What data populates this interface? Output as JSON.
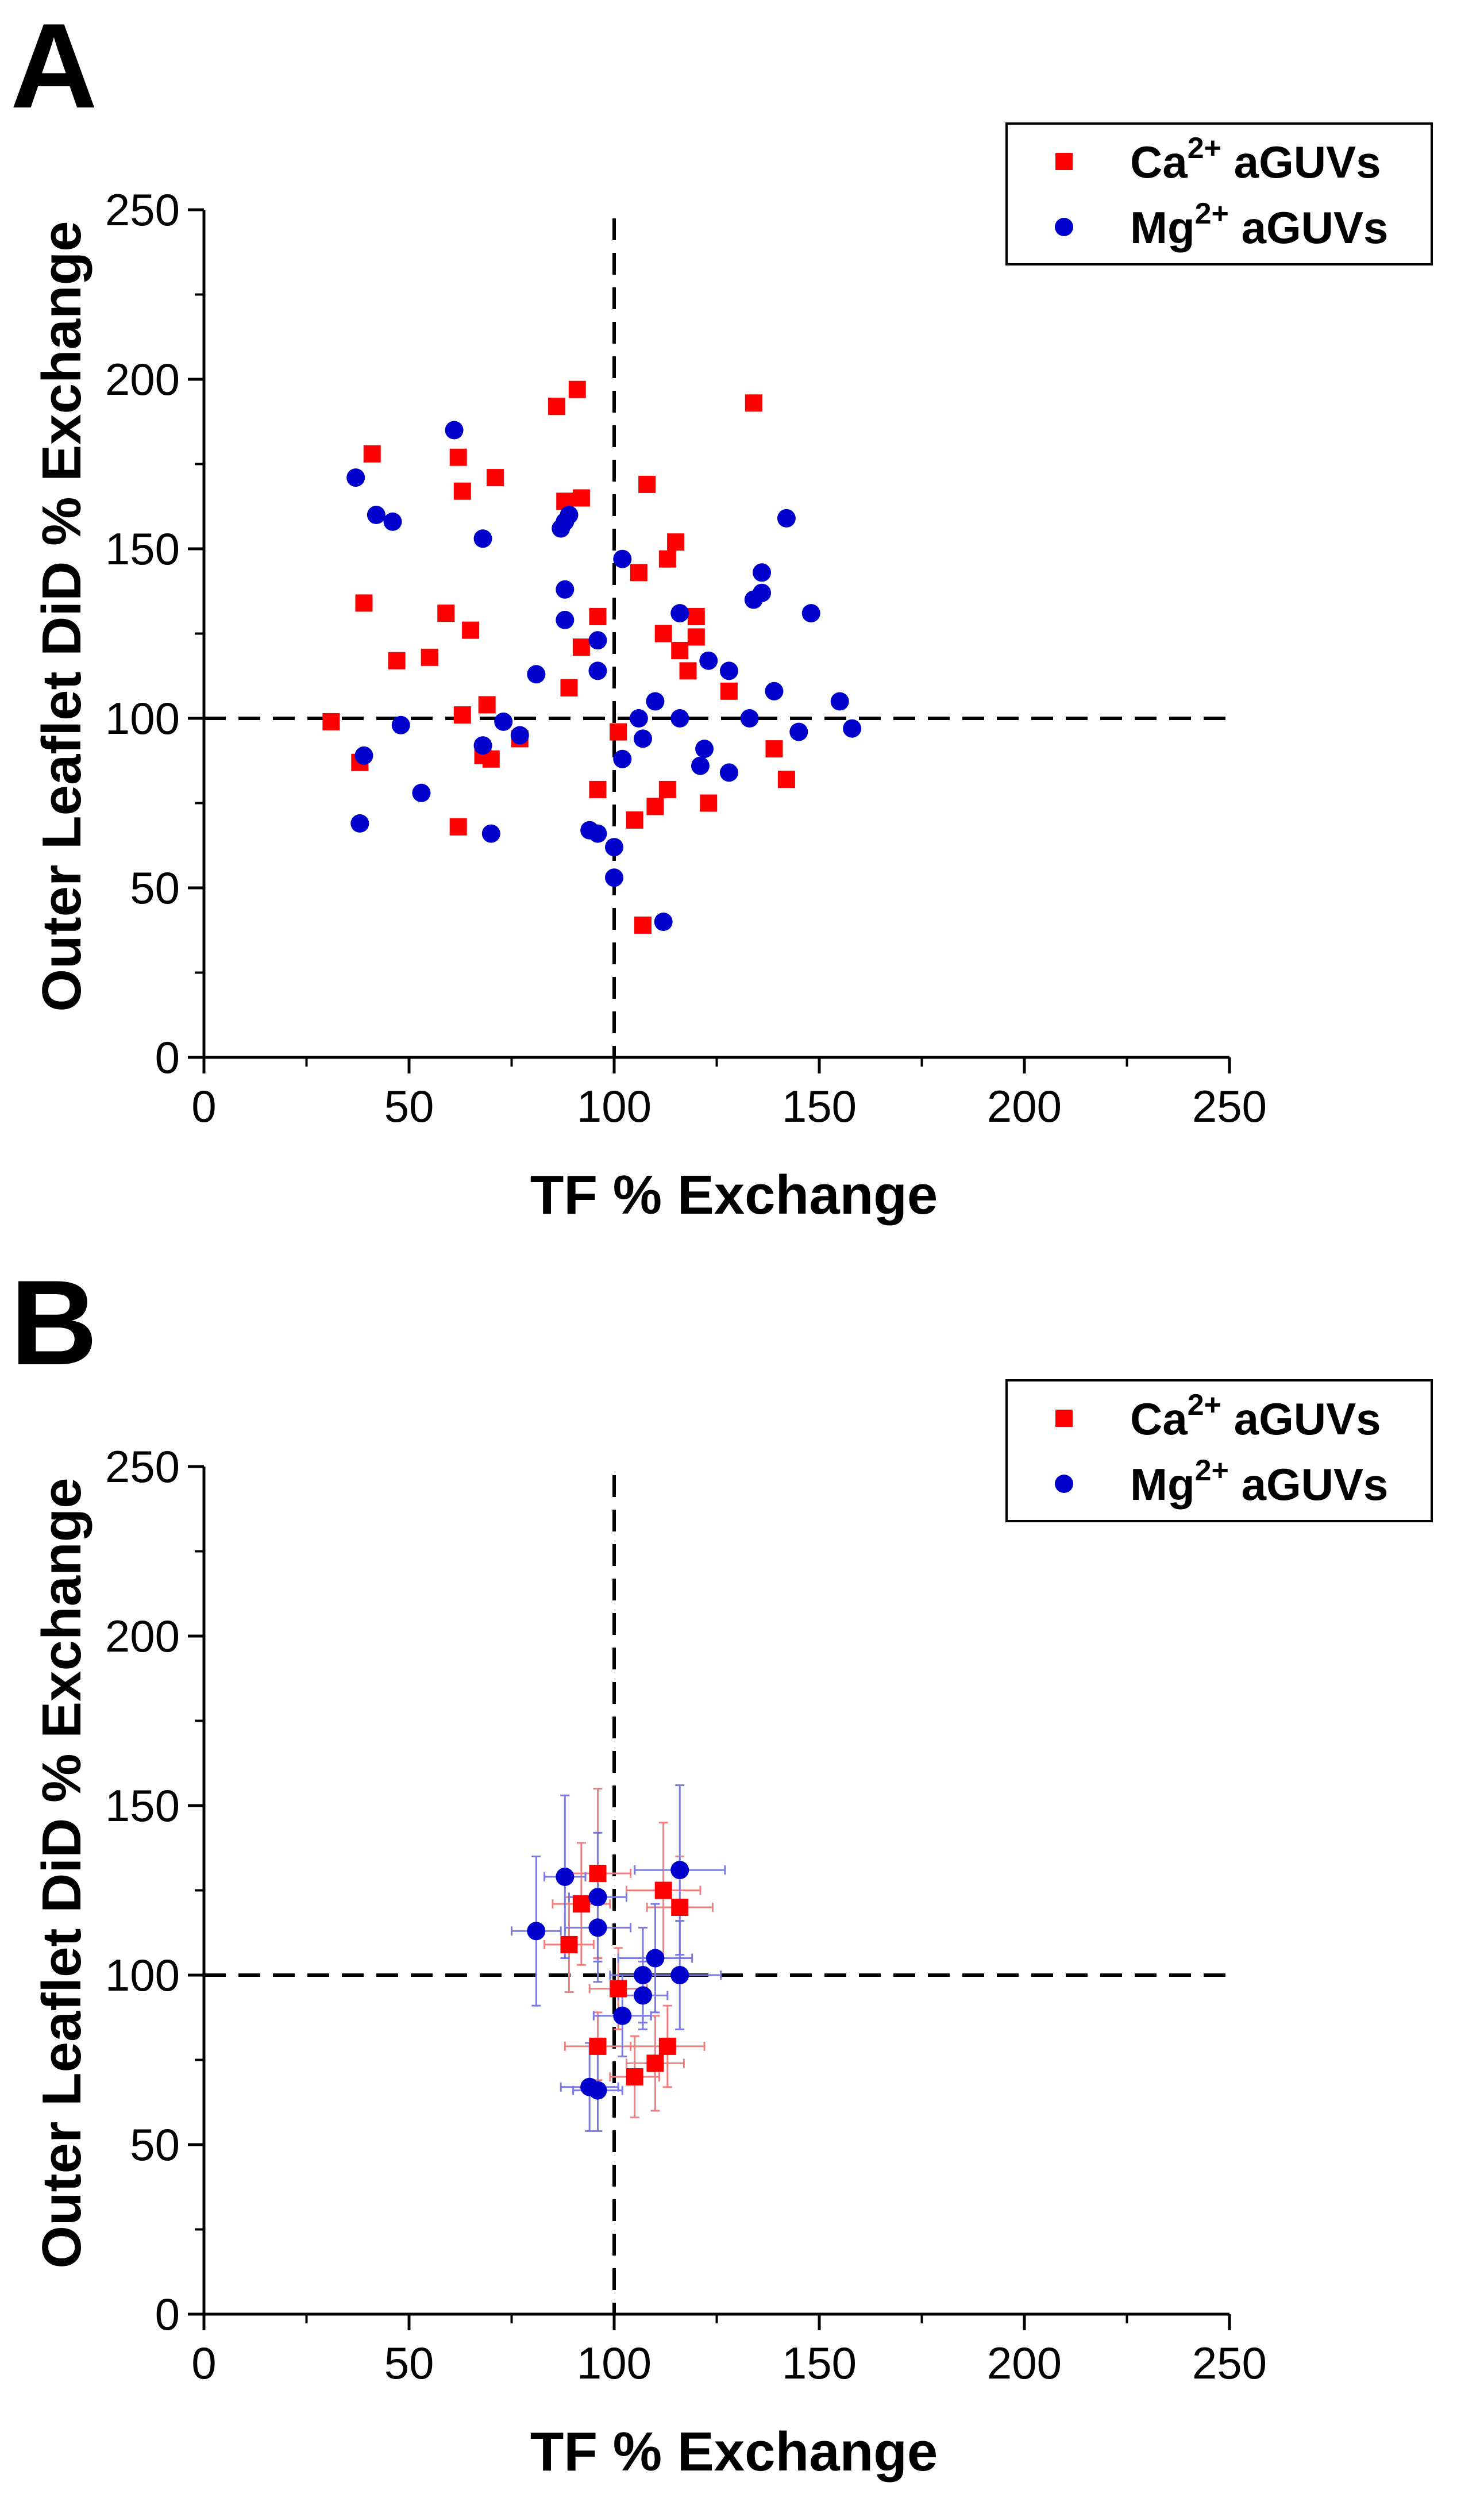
{
  "chart_data": [
    {
      "panel_label": "A",
      "type": "scatter",
      "xlabel": "TF % Exchange",
      "ylabel": "Outer Leaflet DiD % Exchange",
      "xlim": [
        0,
        250
      ],
      "ylim": [
        0,
        250
      ],
      "xticks": [
        "0",
        "50",
        "100",
        "150",
        "200",
        "250"
      ],
      "yticks": [
        "0",
        "50",
        "100",
        "150",
        "200",
        "250"
      ],
      "reference_lines": {
        "x": 100,
        "y": 100,
        "style": "dashed"
      },
      "legend": {
        "placement": "top-right",
        "entries": [
          {
            "prefix": "Ca",
            "sup": "2+",
            "suffix": " aGUVs",
            "marker": "square",
            "color": "#ff0000"
          },
          {
            "prefix": "Mg",
            "sup": "2+",
            "suffix": " aGUVs",
            "marker": "circle",
            "color": "#0000cc"
          }
        ]
      },
      "series": [
        {
          "name": "Ca2+ aGUVs",
          "marker": "square",
          "color": "#ff0000",
          "points": [
            [
              31,
              99
            ],
            [
              38,
              87
            ],
            [
              39,
              134
            ],
            [
              41,
              178
            ],
            [
              47,
              117
            ],
            [
              55,
              118
            ],
            [
              59,
              131
            ],
            [
              62,
              177
            ],
            [
              63,
              167
            ],
            [
              63,
              101
            ],
            [
              62,
              68
            ],
            [
              65,
              126
            ],
            [
              68,
              89
            ],
            [
              69,
              104
            ],
            [
              70,
              88
            ],
            [
              71,
              171
            ],
            [
              77,
              94
            ],
            [
              86,
              192
            ],
            [
              88,
              164
            ],
            [
              88,
              164
            ],
            [
              89,
              109
            ],
            [
              91,
              197
            ],
            [
              92,
              121
            ],
            [
              92,
              165
            ],
            [
              96,
              79
            ],
            [
              96,
              130
            ],
            [
              101,
              96
            ],
            [
              105,
              70
            ],
            [
              106,
              143
            ],
            [
              107,
              39
            ],
            [
              108,
              169
            ],
            [
              110,
              74
            ],
            [
              112,
              125
            ],
            [
              113,
              79
            ],
            [
              113,
              147
            ],
            [
              115,
              152
            ],
            [
              116,
              120
            ],
            [
              118,
              114
            ],
            [
              120,
              124
            ],
            [
              120,
              130
            ],
            [
              123,
              75
            ],
            [
              128,
              108
            ],
            [
              134,
              193
            ],
            [
              139,
              91
            ],
            [
              142,
              82
            ]
          ]
        },
        {
          "name": "Mg2+ aGUVs",
          "marker": "circle",
          "color": "#0000cc",
          "points": [
            [
              37,
              171
            ],
            [
              38,
              69
            ],
            [
              39,
              89
            ],
            [
              42,
              160
            ],
            [
              46,
              158
            ],
            [
              48,
              98
            ],
            [
              53,
              78
            ],
            [
              61,
              185
            ],
            [
              68,
              92
            ],
            [
              68,
              153
            ],
            [
              70,
              66
            ],
            [
              73,
              99
            ],
            [
              77,
              95
            ],
            [
              81,
              113
            ],
            [
              87,
              156
            ],
            [
              88,
              138
            ],
            [
              88,
              129
            ],
            [
              88,
              158
            ],
            [
              89,
              160
            ],
            [
              94,
              67
            ],
            [
              96,
              66
            ],
            [
              96,
              123
            ],
            [
              96,
              114
            ],
            [
              100,
              62
            ],
            [
              100,
              53
            ],
            [
              102,
              88
            ],
            [
              102,
              147
            ],
            [
              106,
              100
            ],
            [
              107,
              94
            ],
            [
              110,
              105
            ],
            [
              112,
              40
            ],
            [
              116,
              131
            ],
            [
              116,
              100
            ],
            [
              121,
              86
            ],
            [
              122,
              91
            ],
            [
              123,
              117
            ],
            [
              128,
              84
            ],
            [
              128,
              114
            ],
            [
              133,
              100
            ],
            [
              134,
              135
            ],
            [
              136,
              137
            ],
            [
              136,
              143
            ],
            [
              139,
              108
            ],
            [
              142,
              159
            ],
            [
              145,
              96
            ],
            [
              148,
              131
            ],
            [
              155,
              105
            ],
            [
              158,
              97
            ]
          ]
        }
      ]
    },
    {
      "panel_label": "B",
      "type": "scatter",
      "xlabel": "TF % Exchange",
      "ylabel": "Outer Leaflet DiD % Exchange",
      "xlim": [
        0,
        250
      ],
      "ylim": [
        0,
        250
      ],
      "xticks": [
        "0",
        "50",
        "100",
        "150",
        "200",
        "250"
      ],
      "yticks": [
        "0",
        "50",
        "100",
        "150",
        "200",
        "250"
      ],
      "reference_lines": {
        "x": 100,
        "y": 100,
        "style": "dashed"
      },
      "legend": {
        "placement": "top-right",
        "entries": [
          {
            "prefix": "Ca",
            "sup": "2+",
            "suffix": " aGUVs",
            "marker": "square",
            "color": "#ff0000"
          },
          {
            "prefix": "Mg",
            "sup": "2+",
            "suffix": " aGUVs",
            "marker": "circle",
            "color": "#0000cc"
          }
        ]
      },
      "series": [
        {
          "name": "Ca2+ aGUVs",
          "marker": "square",
          "color": "#ff0000",
          "errbar_color": "#f08080",
          "points": [
            [
              89,
              109,
              6,
              14
            ],
            [
              92,
              121,
              7,
              18
            ],
            [
              96,
              130,
              8,
              25
            ],
            [
              96,
              79,
              8,
              10
            ],
            [
              101,
              96,
              7,
              12
            ],
            [
              105,
              70,
              6,
              12
            ],
            [
              110,
              74,
              7,
              14
            ],
            [
              112,
              125,
              9,
              20
            ],
            [
              113,
              79,
              9,
              12
            ],
            [
              116,
              120,
              8,
              15
            ]
          ]
        },
        {
          "name": "Mg2+ aGUVs",
          "marker": "circle",
          "color": "#0000cc",
          "errbar_color": "#7a7ae0",
          "points": [
            [
              81,
              113,
              6,
              22
            ],
            [
              88,
              129,
              5,
              24
            ],
            [
              94,
              67,
              7,
              13
            ],
            [
              96,
              66,
              6,
              12
            ],
            [
              96,
              123,
              7,
              19
            ],
            [
              96,
              114,
              8,
              16
            ],
            [
              102,
              88,
              7,
              12
            ],
            [
              107,
              94,
              6,
              10
            ],
            [
              107,
              100,
              8,
              14
            ],
            [
              110,
              105,
              9,
              16
            ],
            [
              116,
              131,
              11,
              25
            ],
            [
              116,
              100,
              10,
              16
            ]
          ]
        }
      ]
    }
  ]
}
